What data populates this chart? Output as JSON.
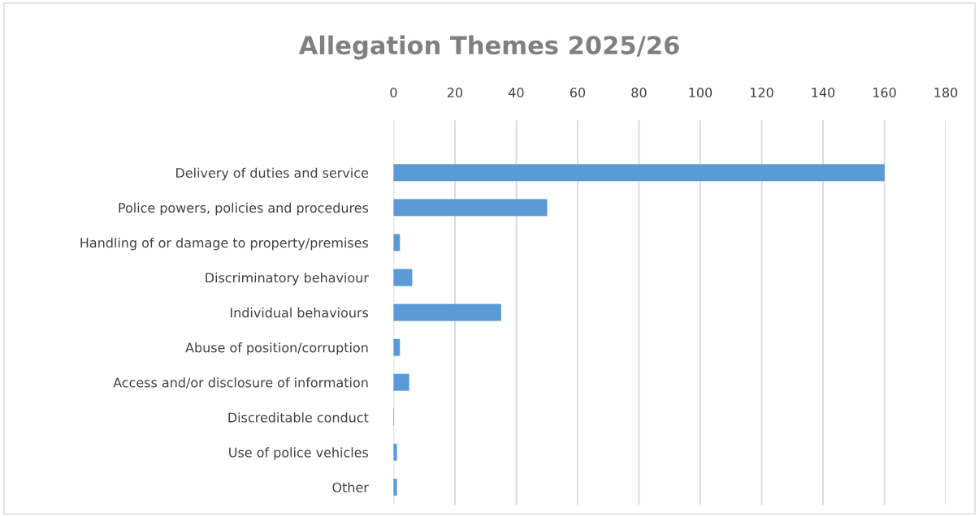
{
  "chart_data": {
    "type": "bar",
    "orientation": "horizontal",
    "title": "Allegation Themes 2025/26",
    "categories": [
      "Delivery of duties and service",
      "Police powers, policies and procedures",
      "Handling of or damage to property/premises",
      "Discriminatory behaviour",
      "Individual behaviours",
      "Abuse of position/corruption",
      "Access and/or disclosure of information",
      "Discreditable conduct",
      "Use of police vehicles",
      "Other"
    ],
    "values": [
      160,
      50,
      2,
      6,
      35,
      2,
      5,
      0,
      1,
      1
    ],
    "color": "#5b9bd5",
    "xlim": [
      0,
      180
    ],
    "xticks": [
      0,
      20,
      40,
      60,
      80,
      100,
      120,
      140,
      160,
      180
    ],
    "grid": "x",
    "legend": false
  }
}
